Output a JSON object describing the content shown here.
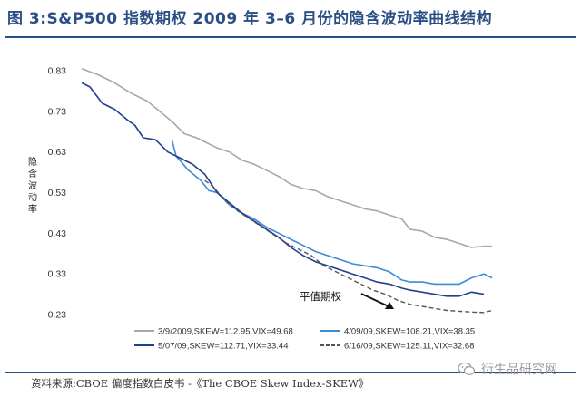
{
  "header": {
    "title": "图 3:S&P500 指数期权 2009 年 3–6 月份的隐含波动率曲线结构"
  },
  "footer": {
    "source": "资料来源:CBOE 偏度指数白皮书 -《The CBOE Skew Index-SKEW》",
    "watermark": "衍生品研究网"
  },
  "chart_data": {
    "type": "line",
    "title": "",
    "xlabel": "",
    "ylabel": "隐含波动率",
    "ylim": [
      0.23,
      0.83
    ],
    "yticks": [
      0.83,
      0.73,
      0.63,
      0.53,
      0.43,
      0.33,
      0.23
    ],
    "x_description": "strike index (unlabeled)",
    "xlim": [
      0,
      100
    ],
    "grid": false,
    "legend_position": "bottom",
    "annotation": "平值期权",
    "series": [
      {
        "name": "3/9/2009,SKEW=112.95,VIX=49.68",
        "color": "#a8a8a8",
        "dash": false,
        "width": 1.6,
        "x": [
          0,
          4,
          8,
          12,
          16,
          19,
          22,
          25,
          28,
          30,
          33,
          36,
          39,
          42,
          45,
          48,
          51,
          54,
          57,
          60,
          63,
          66,
          69,
          72,
          75,
          78,
          80,
          83,
          86,
          89,
          92,
          95,
          98,
          100
        ],
        "y": [
          0.835,
          0.82,
          0.8,
          0.775,
          0.755,
          0.73,
          0.705,
          0.675,
          0.665,
          0.655,
          0.64,
          0.63,
          0.61,
          0.6,
          0.585,
          0.57,
          0.55,
          0.54,
          0.535,
          0.52,
          0.51,
          0.5,
          0.49,
          0.485,
          0.475,
          0.465,
          0.44,
          0.435,
          0.42,
          0.415,
          0.405,
          0.395,
          0.398,
          0.398
        ]
      },
      {
        "name": "4/09/09,SKEW=108.21,VIX=38.35",
        "color": "#3d8bd6",
        "dash": false,
        "width": 1.6,
        "x": [
          22,
          23,
          26,
          29,
          31,
          33,
          36,
          39,
          42,
          45,
          48,
          51,
          54,
          57,
          60,
          63,
          66,
          69,
          72,
          75,
          78,
          80,
          83,
          86,
          89,
          92,
          95,
          98,
          100
        ],
        "y": [
          0.66,
          0.62,
          0.585,
          0.56,
          0.535,
          0.53,
          0.5,
          0.48,
          0.465,
          0.445,
          0.43,
          0.415,
          0.4,
          0.385,
          0.375,
          0.365,
          0.355,
          0.35,
          0.345,
          0.335,
          0.315,
          0.31,
          0.31,
          0.305,
          0.305,
          0.305,
          0.32,
          0.33,
          0.32
        ]
      },
      {
        "name": "5/07/09,SKEW=112.71,VIX=33.44",
        "color": "#1f3f8f",
        "dash": false,
        "width": 1.6,
        "x": [
          0,
          2,
          5,
          8,
          11,
          13,
          15,
          18,
          21,
          24,
          27,
          30,
          33,
          36,
          39,
          42,
          45,
          48,
          51,
          54,
          57,
          60,
          63,
          66,
          69,
          72,
          75,
          78,
          80,
          83,
          86,
          89,
          92,
          95,
          98
        ],
        "y": [
          0.8,
          0.79,
          0.75,
          0.735,
          0.71,
          0.695,
          0.665,
          0.66,
          0.63,
          0.615,
          0.6,
          0.575,
          0.53,
          0.505,
          0.48,
          0.46,
          0.44,
          0.42,
          0.395,
          0.375,
          0.36,
          0.35,
          0.34,
          0.33,
          0.32,
          0.31,
          0.305,
          0.295,
          0.29,
          0.285,
          0.28,
          0.275,
          0.275,
          0.285,
          0.28
        ]
      },
      {
        "name": "6/16/09,SKEW=125.11,VIX=32.68",
        "color": "#555555",
        "dash": true,
        "width": 1.4,
        "x": [
          30,
          32,
          35,
          38,
          41,
          44,
          47,
          50,
          53,
          56,
          59,
          62,
          65,
          68,
          71,
          74,
          77,
          80,
          83,
          86,
          89,
          92,
          95,
          98,
          100
        ],
        "y": [
          0.56,
          0.545,
          0.51,
          0.485,
          0.465,
          0.445,
          0.425,
          0.405,
          0.39,
          0.375,
          0.35,
          0.335,
          0.32,
          0.305,
          0.29,
          0.28,
          0.265,
          0.255,
          0.25,
          0.245,
          0.24,
          0.238,
          0.236,
          0.235,
          0.24
        ]
      }
    ]
  }
}
